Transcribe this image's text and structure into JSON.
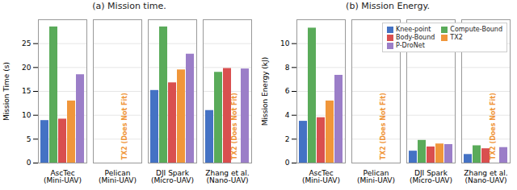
{
  "chart_data": [
    {
      "type": "bar",
      "title": "(a) Mission time.",
      "ylabel": "Mission Time (s)",
      "categories": [
        "AscTec\n(Mini-UAV)",
        "Pelican\n(Mini-UAV)",
        "DJI Spark\n(Micro-UAV)",
        "Zhang et al.\n(Nano-UAV)"
      ],
      "series": [
        {
          "name": "Knee-point",
          "color": "#4472c4",
          "values": [
            8.9,
            null,
            15.2,
            11.0
          ]
        },
        {
          "name": "Compute-Bound",
          "color": "#5aab5a",
          "values": [
            28.5,
            null,
            28.5,
            19.0
          ]
        },
        {
          "name": "Body-Bound",
          "color": "#d94f4f",
          "values": [
            9.2,
            null,
            16.8,
            19.8
          ]
        },
        {
          "name": "TX2",
          "color": "#f0963a",
          "values": [
            13.0,
            null,
            19.5,
            null
          ]
        },
        {
          "name": "P-DroNet",
          "color": "#9b7ec8",
          "values": [
            18.5,
            null,
            22.8,
            19.7
          ]
        }
      ],
      "ylim": [
        0,
        30
      ],
      "yticks": [
        0,
        5,
        10,
        15,
        20,
        25
      ],
      "grid": true,
      "annotations": [
        {
          "text": "TX2 (Does Not Fit)",
          "category": "Pelican\n(Mini-UAV)",
          "series": "TX2",
          "color": "#f0963a"
        },
        {
          "text": "TX2 (Does Not Fit)",
          "category": "Zhang et al.\n(Nano-UAV)",
          "series": "TX2",
          "color": "#f0963a"
        }
      ]
    },
    {
      "type": "bar",
      "title": "(b) Mission Energy.",
      "ylabel": "Mission Energy (kJ)",
      "categories": [
        "AscTec\n(Mini-UAV)",
        "Pelican\n(Mini-UAV)",
        "DJI Spark\n(Micro-UAV)",
        "Zhang et al.\n(Nano-UAV)"
      ],
      "series": [
        {
          "name": "Knee-point",
          "color": "#4472c4",
          "values": [
            3.5,
            null,
            1.0,
            0.72
          ]
        },
        {
          "name": "Compute-Bound",
          "color": "#5aab5a",
          "values": [
            11.3,
            null,
            1.9,
            1.45
          ]
        },
        {
          "name": "Body-Bound",
          "color": "#d94f4f",
          "values": [
            3.8,
            null,
            1.35,
            1.2
          ]
        },
        {
          "name": "TX2",
          "color": "#f0963a",
          "values": [
            5.2,
            null,
            1.6,
            null
          ]
        },
        {
          "name": "P-DroNet",
          "color": "#9b7ec8",
          "values": [
            7.35,
            null,
            1.55,
            1.3
          ]
        }
      ],
      "ylim": [
        0,
        12
      ],
      "yticks": [
        0,
        2,
        4,
        6,
        8,
        10
      ],
      "grid": true,
      "legend": "upper right",
      "annotations": [
        {
          "text": "TX2 (Does Not Fit)",
          "category": "Pelican\n(Mini-UAV)",
          "series": "TX2",
          "color": "#f0963a"
        },
        {
          "text": "TX2 (Does Not Fit)",
          "category": "Zhang et al.\n(Nano-UAV)",
          "series": "TX2",
          "color": "#f0963a"
        }
      ]
    }
  ]
}
